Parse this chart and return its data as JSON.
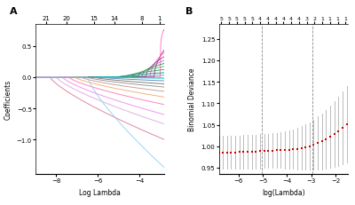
{
  "panel_A": {
    "title": "A",
    "xlabel": "Log Lambda",
    "ylabel": "Coefficients",
    "top_ticks": [
      21,
      20,
      15,
      14,
      8,
      1
    ],
    "top_tick_positions": [
      -8.5,
      -7.5,
      -6.2,
      -5.2,
      -3.9,
      -3.05
    ],
    "xlim": [
      -9.0,
      -2.8
    ],
    "ylim": [
      -1.55,
      0.85
    ],
    "yticks": [
      -1.0,
      -0.5,
      0.0,
      0.5
    ],
    "colors": [
      "#FF69B4",
      "#C71585",
      "#DA70D6",
      "#B03060",
      "#9370DB",
      "#228B22",
      "#3CB371",
      "#2E8B57",
      "#008080",
      "#20B2AA",
      "#00CED1",
      "#4682B4",
      "#696969",
      "#8B8680",
      "#BC8F8F",
      "#F4A460",
      "#FF6EB4",
      "#EE82EE",
      "#DDA0DD",
      "#DB7093",
      "#87CEEB"
    ],
    "final_vals": [
      0.78,
      0.44,
      0.4,
      0.33,
      0.27,
      0.22,
      0.17,
      0.12,
      0.07,
      0.03,
      -0.02,
      -0.06,
      -0.11,
      -0.16,
      -0.23,
      -0.32,
      -0.44,
      -0.6,
      -0.75,
      -1.0,
      -1.45
    ],
    "knot_positions": [
      -3.0,
      -3.3,
      -3.5,
      -3.7,
      -3.9,
      -4.1,
      -4.4,
      -4.7,
      -5.0,
      -5.3,
      -5.6,
      -5.9,
      -6.2,
      -6.5,
      -6.8,
      -7.1,
      -7.4,
      -7.7,
      -8.0,
      -8.3,
      -6.5
    ],
    "flat_region": [
      -9.0,
      -4.5
    ]
  },
  "panel_B": {
    "title": "B",
    "xlabel": "log(Lambda)",
    "ylabel": "Binomial Deviance",
    "top_ticks": [
      5,
      5,
      5,
      5,
      5,
      4,
      4,
      4,
      4,
      4,
      4,
      3,
      2,
      1,
      1,
      1,
      1
    ],
    "xlim": [
      -6.8,
      -1.5
    ],
    "ylim": [
      0.935,
      1.285
    ],
    "yticks": [
      0.95,
      1.0,
      1.05,
      1.1,
      1.15,
      1.2,
      1.25
    ],
    "vlines": [
      -5.05,
      -2.95
    ],
    "dot_color": "#CC0000",
    "ci_color": "#BBBBBB",
    "n_points": 32
  }
}
